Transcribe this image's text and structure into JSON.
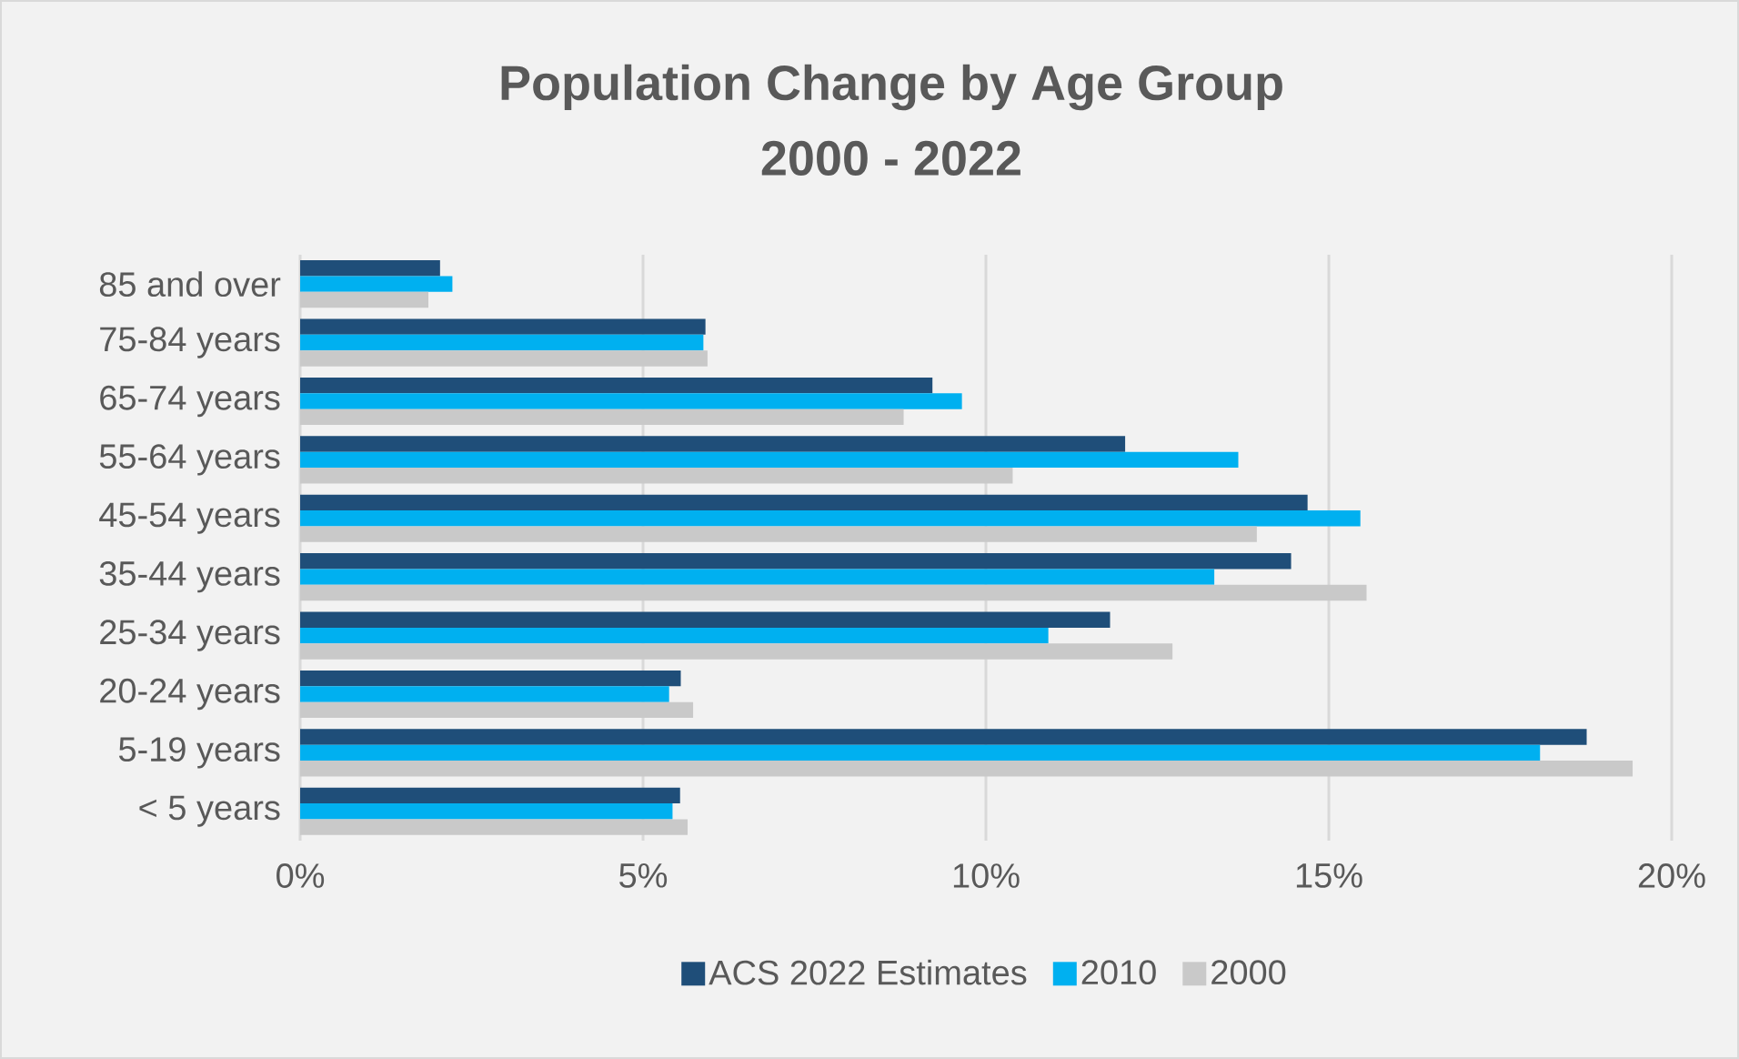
{
  "chart_data": {
    "type": "bar",
    "orientation": "horizontal",
    "title": "Population Change by Age Group",
    "subtitle": "2000 - 2022",
    "categories": [
      "85 and over",
      "75-84 years",
      "65-74 years",
      "55-64 years",
      "45-54 years",
      "35-44 years",
      "25-34 years",
      "20-24 years",
      "5-19 years",
      "< 5 years"
    ],
    "series": [
      {
        "name": "ACS 2022 Estimates",
        "color": "#1f4e79",
        "values": [
          2.04,
          5.91,
          9.22,
          12.03,
          14.69,
          14.45,
          11.81,
          5.55,
          18.76,
          5.54
        ]
      },
      {
        "name": "2010",
        "color": "#00b0f0",
        "values": [
          2.22,
          5.88,
          9.65,
          13.68,
          15.46,
          13.33,
          10.91,
          5.38,
          18.08,
          5.43
        ]
      },
      {
        "name": "2000",
        "color": "#c9c9c9",
        "values": [
          1.87,
          5.94,
          8.8,
          10.39,
          13.95,
          15.55,
          12.72,
          5.73,
          19.43,
          5.65
        ]
      }
    ],
    "xlim": [
      0,
      20
    ],
    "xticks": [
      {
        "value": 0,
        "label": "0%"
      },
      {
        "value": 5,
        "label": "5%"
      },
      {
        "value": 10,
        "label": "10%"
      },
      {
        "value": 15,
        "label": "15%"
      },
      {
        "value": 20,
        "label": "20%"
      }
    ],
    "grid": "x",
    "legend": "bottom"
  }
}
